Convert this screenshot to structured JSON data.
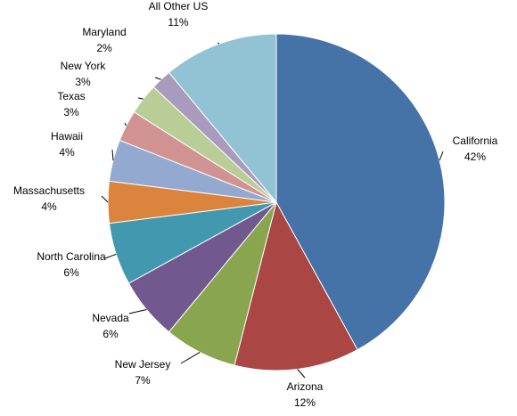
{
  "chart_data": {
    "type": "pie",
    "categories": [
      "California",
      "Arizona",
      "New Jersey",
      "Nevada",
      "North Carolina",
      "Massachusetts",
      "Hawaii",
      "Texas",
      "New York",
      "Maryland",
      "All Other US"
    ],
    "values": [
      42,
      12,
      7,
      6,
      6,
      4,
      4,
      3,
      3,
      2,
      11
    ],
    "value_labels": [
      "42%",
      "12%",
      "7%",
      "6%",
      "6%",
      "4%",
      "4%",
      "3%",
      "3%",
      "2%",
      "11%"
    ],
    "colors": [
      "#4572a7",
      "#aa4643",
      "#89a54e",
      "#71588f",
      "#4198af",
      "#db843d",
      "#93a9cf",
      "#d19392",
      "#b9cd96",
      "#a99bbd",
      "#92c3d4"
    ]
  }
}
